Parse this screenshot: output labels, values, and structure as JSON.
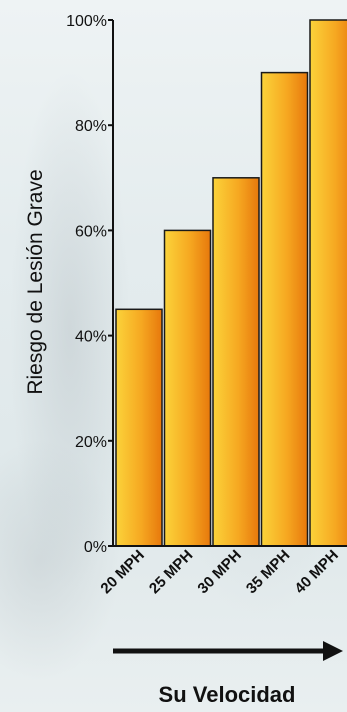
{
  "chart_data": {
    "type": "bar",
    "categories": [
      "20 MPH",
      "25 MPH",
      "30 MPH",
      "35 MPH",
      "40 MPH"
    ],
    "values": [
      45,
      60,
      70,
      90,
      100
    ],
    "ylabel": "Riesgo de Lesión Grave",
    "xlabel": "Su Velocidad",
    "ylim": [
      0,
      100
    ],
    "yticks": [
      "0%",
      "20%",
      "40%",
      "60%",
      "80%",
      "100%"
    ],
    "ytick_values": [
      0,
      20,
      40,
      60,
      80,
      100
    ],
    "bar_color": "#f5a623",
    "grid": false,
    "legend": "none"
  }
}
